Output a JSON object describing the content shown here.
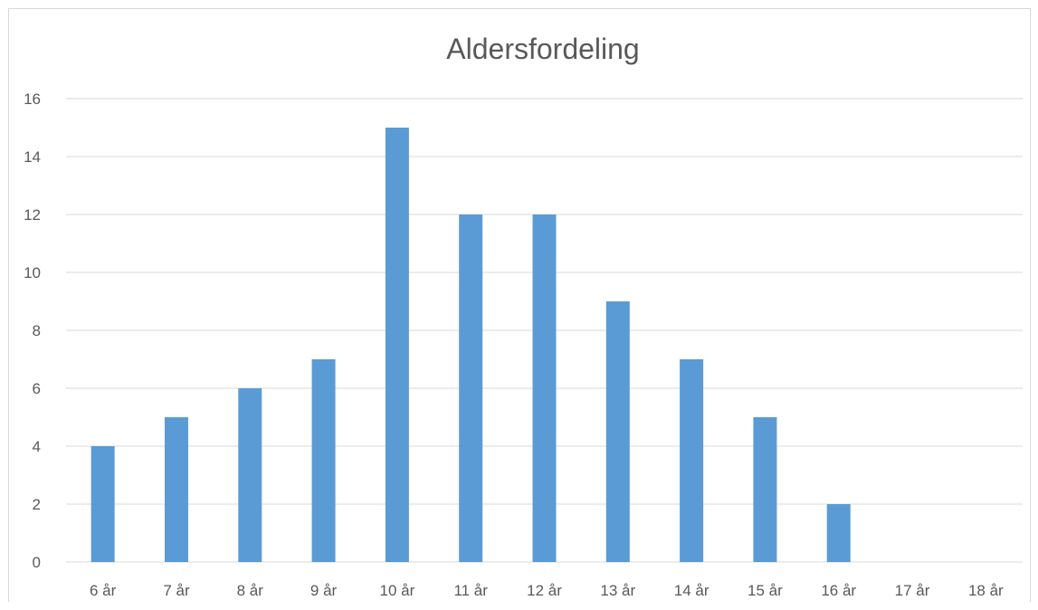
{
  "chart_data": {
    "type": "bar",
    "title": "Aldersfordeling",
    "categories": [
      "6 år",
      "7 år",
      "8 år",
      "9 år",
      "10 år",
      "11 år",
      "12 år",
      "13 år",
      "14 år",
      "15 år",
      "16 år",
      "17 år",
      "18 år"
    ],
    "values": [
      4,
      5,
      6,
      7,
      15,
      12,
      12,
      9,
      7,
      5,
      2,
      0,
      0
    ],
    "ylim": [
      0,
      16
    ],
    "yticks": [
      0,
      2,
      4,
      6,
      8,
      10,
      12,
      14,
      16
    ],
    "grid": true,
    "legend": "none",
    "bar_color": "#5b9bd5",
    "grid_color": "#d9d9d9",
    "text_color": "#595959"
  }
}
